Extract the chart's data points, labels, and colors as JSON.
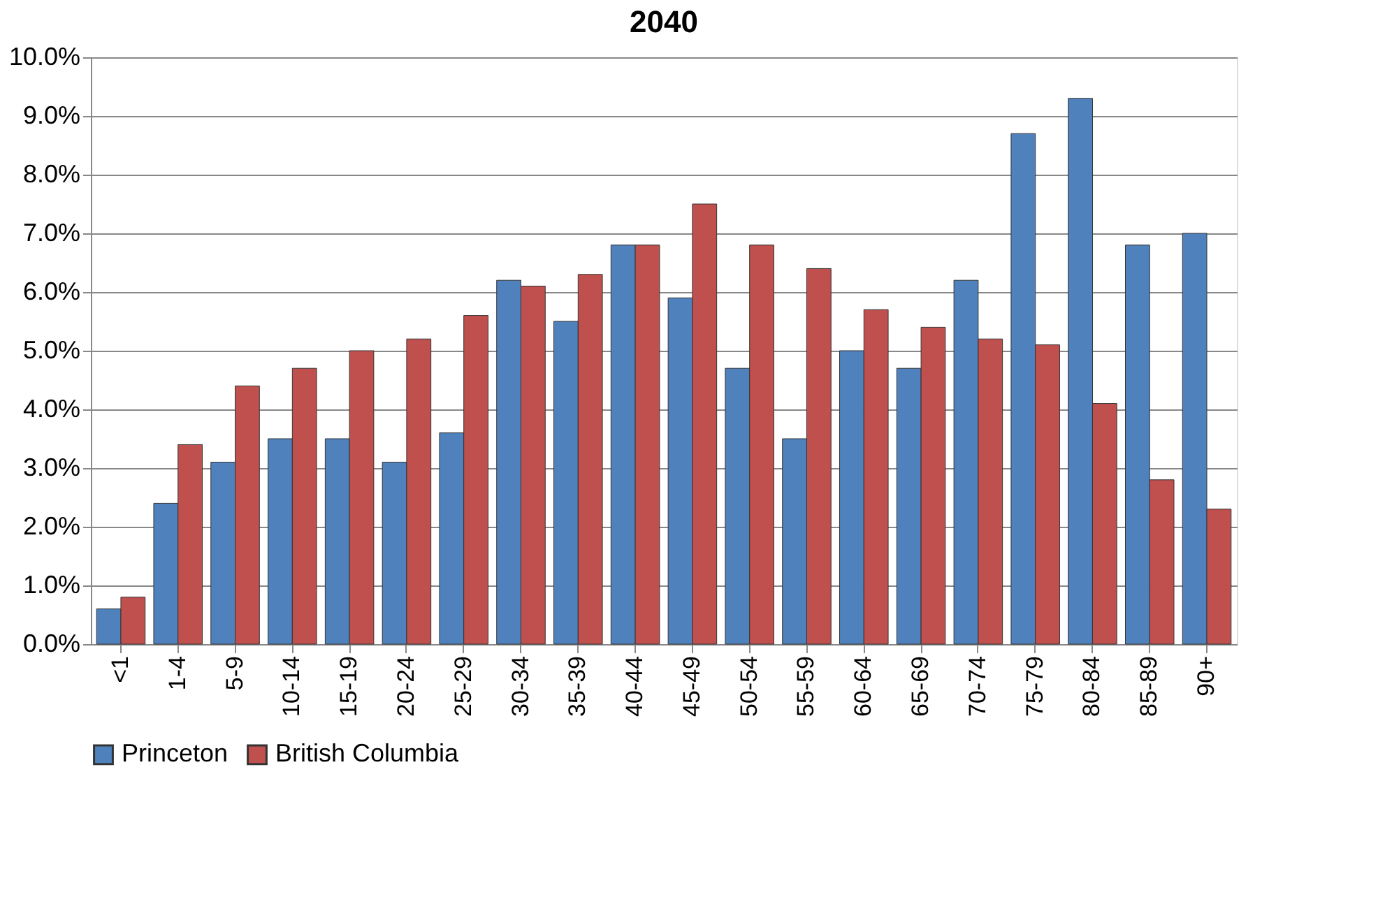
{
  "chart_data": {
    "type": "bar",
    "title": "2040",
    "categories": [
      "<1",
      "1-4",
      "5-9",
      "10-14",
      "15-19",
      "20-24",
      "25-29",
      "30-34",
      "35-39",
      "40-44",
      "45-49",
      "50-54",
      "55-59",
      "60-64",
      "65-69",
      "70-74",
      "75-79",
      "80-84",
      "85-89",
      "90+"
    ],
    "series": [
      {
        "name": "Princeton",
        "color": "#4f81bd",
        "values": [
          0.6,
          2.4,
          3.1,
          3.5,
          3.5,
          3.1,
          3.6,
          6.2,
          5.5,
          6.8,
          5.9,
          4.7,
          3.5,
          5.0,
          4.7,
          6.2,
          8.7,
          9.3,
          6.8,
          7.0
        ]
      },
      {
        "name": "British Columbia",
        "color": "#c0504d",
        "values": [
          0.8,
          3.4,
          4.4,
          4.7,
          5.0,
          5.2,
          5.6,
          6.1,
          6.3,
          6.8,
          7.5,
          6.8,
          6.4,
          5.7,
          5.4,
          5.2,
          5.1,
          4.1,
          2.8,
          2.3
        ]
      }
    ],
    "ylim": [
      0,
      10
    ],
    "yticks": [
      {
        "value": 0,
        "label": "0.0%"
      },
      {
        "value": 1,
        "label": "1.0%"
      },
      {
        "value": 2,
        "label": "2.0%"
      },
      {
        "value": 3,
        "label": "3.0%"
      },
      {
        "value": 4,
        "label": "4.0%"
      },
      {
        "value": 5,
        "label": "5.0%"
      },
      {
        "value": 6,
        "label": "6.0%"
      },
      {
        "value": 7,
        "label": "7.0%"
      },
      {
        "value": 8,
        "label": "8.0%"
      },
      {
        "value": 9,
        "label": "9.0%"
      },
      {
        "value": 10,
        "label": "10.0%"
      }
    ],
    "grid": "y",
    "legend": "bottom"
  }
}
